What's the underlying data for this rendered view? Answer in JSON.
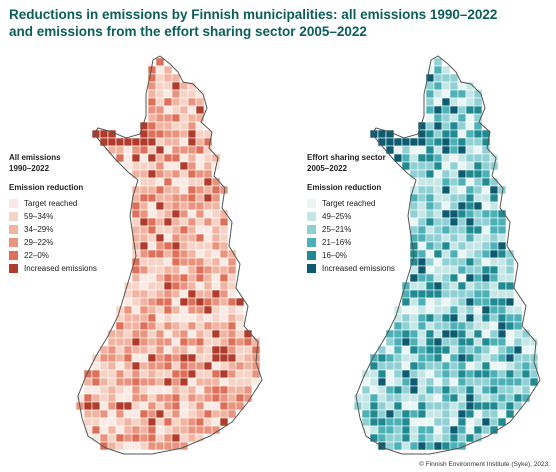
{
  "title_line1": "Reductions in emissions by Finnish municipalities: all emissions 1990–2022",
  "title_line2": "and emissions from the effort sharing sector 2005–2022",
  "left_map": {
    "heading1": "All emissions",
    "heading2": "1990–2022",
    "legend_title": "Emission reduction",
    "legend": [
      {
        "label": "Target reached",
        "color": "#fbeae4"
      },
      {
        "label": "59–34%",
        "color": "#f7d2c5"
      },
      {
        "label": "34–29%",
        "color": "#f2b3a1"
      },
      {
        "label": "29–22%",
        "color": "#ea937e"
      },
      {
        "label": "22–0%",
        "color": "#de6f58"
      },
      {
        "label": "Increased emissions",
        "color": "#b13c2b"
      }
    ]
  },
  "right_map": {
    "heading1": "Effort sharing sector",
    "heading2": "2005–2022",
    "legend_title": "Emission reduction",
    "legend": [
      {
        "label": "Target reached",
        "color": "#eaf6f6"
      },
      {
        "label": "49–25%",
        "color": "#c5e6e7"
      },
      {
        "label": "25–21%",
        "color": "#8ed0d3"
      },
      {
        "label": "21–16%",
        "color": "#4bb1b7"
      },
      {
        "label": "16–0%",
        "color": "#1f8a92"
      },
      {
        "label": "Increased emissions",
        "color": "#0c5b70"
      }
    ]
  },
  "footer": "© Finnish Environment Institute (Syke), 2023."
}
